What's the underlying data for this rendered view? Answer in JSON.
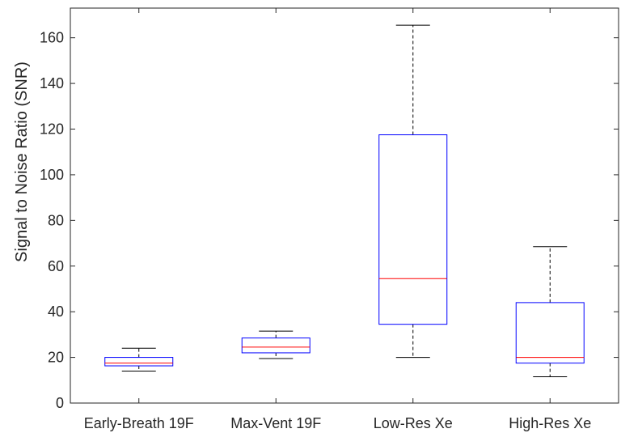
{
  "chart_data": {
    "type": "box",
    "xlabel": "",
    "ylabel": "Signal to Noise Ratio (SNR)",
    "ylim": [
      0,
      173
    ],
    "yticks": [
      0,
      20,
      40,
      60,
      80,
      100,
      120,
      140,
      160
    ],
    "categories": [
      "Early-Breath 19F",
      "Max-Vent 19F",
      "Low-Res Xe",
      "High-Res Xe"
    ],
    "boxes": [
      {
        "category": "Early-Breath 19F",
        "min": 14,
        "q1": 16.3,
        "median": 17.5,
        "q3": 20,
        "max": 24
      },
      {
        "category": "Max-Vent 19F",
        "min": 19.5,
        "q1": 22,
        "median": 24.5,
        "q3": 28.5,
        "max": 31.5
      },
      {
        "category": "Low-Res Xe",
        "min": 20,
        "q1": 34.5,
        "median": 54.5,
        "q3": 117.5,
        "max": 165.5
      },
      {
        "category": "High-Res Xe",
        "min": 11.5,
        "q1": 17.5,
        "median": 20,
        "q3": 44,
        "max": 68.5
      }
    ],
    "colors": {
      "box": "#0000ff",
      "median": "#ff0000",
      "whisker": "#000000",
      "axis": "#262626"
    },
    "grid": false
  }
}
